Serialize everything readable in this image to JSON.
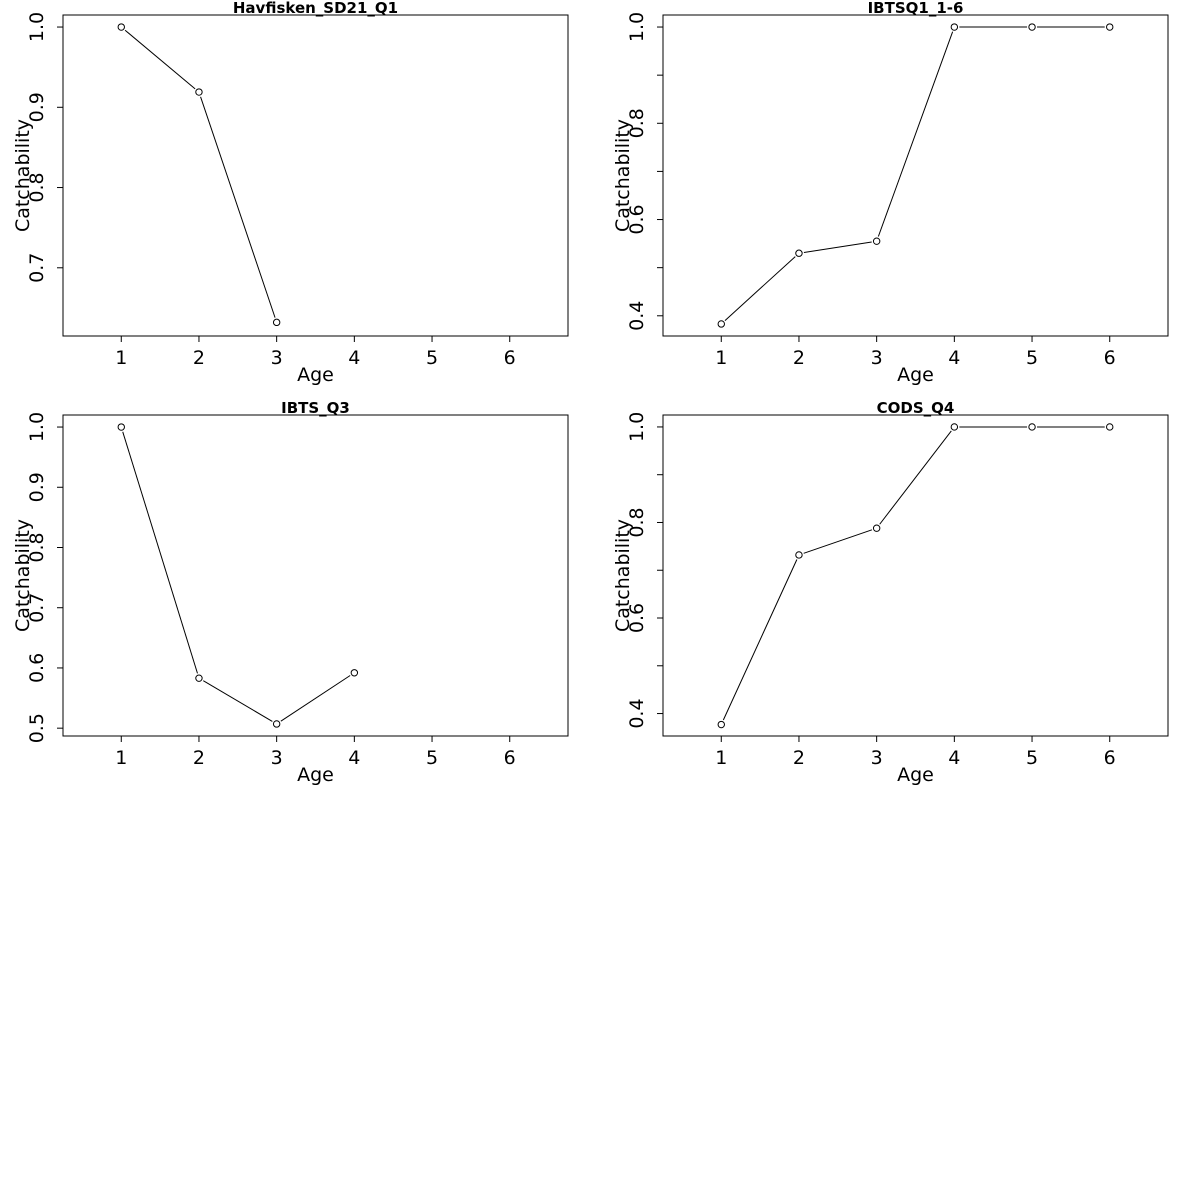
{
  "chart_data": [
    {
      "type": "line",
      "title": "Havfisken_SD21_Q1",
      "xlabel": "Age",
      "ylabel": "Catchability",
      "x": [
        1,
        2,
        3
      ],
      "y": [
        1.0,
        0.919,
        0.632
      ],
      "xlim": [
        0.25,
        6.75
      ],
      "ylim": [
        0.615,
        1.015
      ],
      "xticks": [
        1,
        2,
        3,
        4,
        5,
        6
      ],
      "yticks": [
        0.7,
        0.8,
        0.9,
        1.0
      ],
      "xtick_labels": [
        "1",
        "2",
        "3",
        "4",
        "5",
        "6"
      ],
      "ytick_labels": [
        "0.7",
        "0.8",
        "0.9",
        "1.0"
      ],
      "yminor": [],
      "grid": false,
      "marker": "open-circle"
    },
    {
      "type": "line",
      "title": "IBTSQ1_1-6",
      "xlabel": "Age",
      "ylabel": "Catchability",
      "x": [
        1,
        2,
        3,
        4,
        5,
        6
      ],
      "y": [
        0.383,
        0.53,
        0.555,
        1.0,
        1.0,
        1.0
      ],
      "xlim": [
        0.25,
        6.75
      ],
      "ylim": [
        0.358,
        1.025
      ],
      "xticks": [
        1,
        2,
        3,
        4,
        5,
        6
      ],
      "yticks": [
        0.4,
        0.6,
        0.8,
        1.0
      ],
      "xtick_labels": [
        "1",
        "2",
        "3",
        "4",
        "5",
        "6"
      ],
      "ytick_labels": [
        "0.4",
        "0.6",
        "0.8",
        "1.0"
      ],
      "yminor": [
        0.5,
        0.7,
        0.9
      ],
      "grid": false,
      "marker": "open-circle"
    },
    {
      "type": "line",
      "title": "IBTS_Q3",
      "xlabel": "Age",
      "ylabel": "Catchability",
      "x": [
        1,
        2,
        3,
        4
      ],
      "y": [
        1.0,
        0.583,
        0.507,
        0.592
      ],
      "xlim": [
        0.25,
        6.75
      ],
      "ylim": [
        0.487,
        1.02
      ],
      "xticks": [
        1,
        2,
        3,
        4,
        5,
        6
      ],
      "yticks": [
        0.5,
        0.6,
        0.7,
        0.8,
        0.9,
        1.0
      ],
      "xtick_labels": [
        "1",
        "2",
        "3",
        "4",
        "5",
        "6"
      ],
      "ytick_labels": [
        "0.5",
        "0.6",
        "0.7",
        "0.8",
        "0.9",
        "1.0"
      ],
      "yminor": [],
      "grid": false,
      "marker": "open-circle"
    },
    {
      "type": "line",
      "title": "CODS_Q4",
      "xlabel": "Age",
      "ylabel": "Catchability",
      "x": [
        1,
        2,
        3,
        4,
        5,
        6
      ],
      "y": [
        0.377,
        0.732,
        0.788,
        1.0,
        1.0,
        1.0
      ],
      "xlim": [
        0.25,
        6.75
      ],
      "ylim": [
        0.353,
        1.025
      ],
      "xticks": [
        1,
        2,
        3,
        4,
        5,
        6
      ],
      "yticks": [
        0.4,
        0.6,
        0.8,
        1.0
      ],
      "xtick_labels": [
        "1",
        "2",
        "3",
        "4",
        "5",
        "6"
      ],
      "ytick_labels": [
        "0.4",
        "0.6",
        "0.8",
        "1.0"
      ],
      "yminor": [
        0.5,
        0.7,
        0.9
      ],
      "grid": false,
      "marker": "open-circle"
    }
  ]
}
